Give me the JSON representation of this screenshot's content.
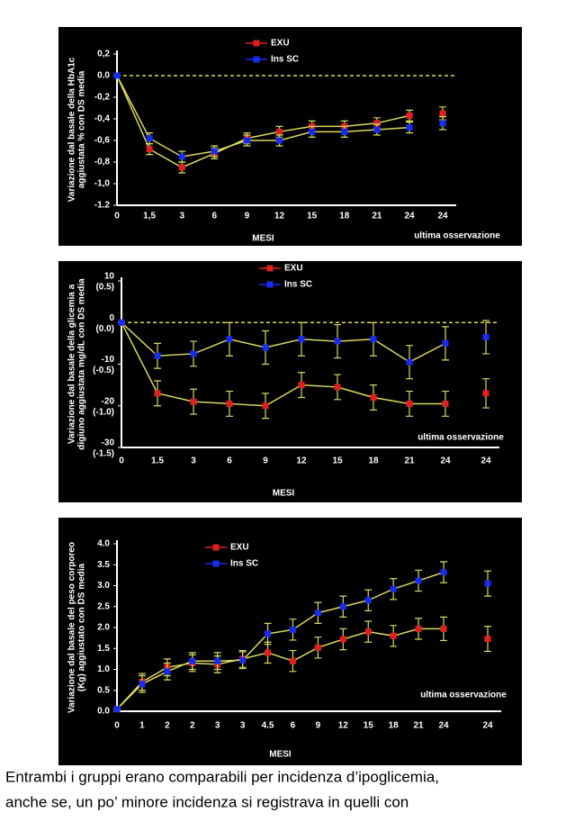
{
  "chart_data": [
    {
      "type": "line",
      "ylabel": [
        "Variazione dal basale della HbA1c",
        "aggiustata % con DS media"
      ],
      "xlabel": "MESI",
      "last_label": "ultima osservazione",
      "categories": [
        "0",
        "1,5",
        "3",
        "6",
        "9",
        "12",
        "15",
        "18",
        "21",
        "24"
      ],
      "last_category": "24",
      "ylim": [
        -1.2,
        0.2
      ],
      "yticks": [
        {
          "value": 0.2,
          "label": "0,2"
        },
        {
          "value": 0,
          "label": "0.0"
        },
        {
          "value": -0.2,
          "label": "-0,2"
        },
        {
          "value": -0.4,
          "label": "-0,4"
        },
        {
          "value": -0.6,
          "label": "-0,6"
        },
        {
          "value": -0.8,
          "label": "-0,8"
        },
        {
          "value": -1,
          "label": "-1,0"
        },
        {
          "value": -1.2,
          "label": "-1.2"
        }
      ],
      "zero_line": true,
      "line_color": "#d8d860",
      "series": [
        {
          "name": "EXU",
          "color": "#e02020",
          "values": [
            0,
            -0.68,
            -0.85,
            -0.72,
            -0.58,
            -0.52,
            -0.47,
            -0.47,
            -0.44,
            -0.37
          ],
          "errors": [
            0,
            0.05,
            0.05,
            0.05,
            0.05,
            0.05,
            0.05,
            0.05,
            0.05,
            0.05
          ],
          "last_value": -0.35,
          "last_error": 0.06
        },
        {
          "name": "Ins SC",
          "color": "#1a2bf0",
          "values": [
            0,
            -0.58,
            -0.75,
            -0.7,
            -0.6,
            -0.6,
            -0.52,
            -0.52,
            -0.5,
            -0.48
          ],
          "errors": [
            0,
            0.05,
            0.05,
            0.05,
            0.05,
            0.05,
            0.05,
            0.05,
            0.05,
            0.05
          ],
          "last_value": -0.44,
          "last_error": 0.06
        }
      ]
    },
    {
      "type": "line",
      "ylabel": [
        "Variazione dal basale della glicemia a",
        "digiuno aggiustata mg/dL con DS media"
      ],
      "xlabel": "MESI",
      "last_label": "ultima osservazione",
      "categories": [
        "0",
        "1.5",
        "3",
        "6",
        "9",
        "12",
        "15",
        "18",
        "21",
        "24"
      ],
      "last_category": "24",
      "ylim": [
        -30,
        10
      ],
      "yticks": [
        10,
        0,
        -10,
        -20,
        -30
      ],
      "y2lim": [
        -1.5,
        0.5
      ],
      "y2ticks": [
        {
          "value": 0.5,
          "label": "(0.5)"
        },
        {
          "value": 0,
          "label": "(0.0)"
        },
        {
          "value": -0.5,
          "label": "(-0.5)"
        },
        {
          "value": -1,
          "label": "(-1.0)"
        },
        {
          "value": -1.5,
          "label": "(-1.5)"
        }
      ],
      "zero_line": true,
      "line_color": "#d8d860",
      "series": [
        {
          "name": "EXU",
          "color": "#e02020",
          "values": [
            0,
            -17,
            -19,
            -19.5,
            -20,
            -15,
            -15.5,
            -18,
            -19.5,
            -19.5
          ],
          "errors": [
            0,
            3,
            3,
            3,
            3,
            3,
            3,
            3,
            3,
            3
          ],
          "last_value": -17,
          "last_error": 3.5
        },
        {
          "name": "Ins SC",
          "color": "#1a2bf0",
          "values": [
            0,
            -8,
            -7.5,
            -4,
            -6,
            -4,
            -4.5,
            -4,
            -9.5,
            -5
          ],
          "errors": [
            0,
            3,
            3,
            4,
            4,
            4,
            4,
            4,
            4,
            4
          ],
          "last_value": -3.5,
          "last_error": 4
        }
      ]
    },
    {
      "type": "line",
      "ylabel": [
        "Variazione dal basale del peso corporeo",
        "(Kg) aggiustato con DS media"
      ],
      "xlabel": "MESI",
      "last_label": "ultima osservazione",
      "categories": [
        "0",
        "1",
        "2",
        "2",
        "3",
        "3",
        "4.5",
        "6",
        "9",
        "12",
        "15",
        "18",
        "21",
        "24"
      ],
      "last_category": "24",
      "ylim": [
        0,
        4
      ],
      "yticks": [
        {
          "value": 0,
          "label": "0.0"
        },
        0.5,
        {
          "value": 1,
          "label": "1.0"
        },
        1.5,
        {
          "value": 2,
          "label": "2.0"
        },
        2.5,
        {
          "value": 3,
          "label": "3.0"
        },
        3.5,
        {
          "value": 4,
          "label": "4.0"
        }
      ],
      "zero_line": false,
      "line_color": "#d8d860",
      "series": [
        {
          "name": "EXU",
          "color": "#e02020",
          "values": [
            0.05,
            0.7,
            1.05,
            1.15,
            1.12,
            1.25,
            1.4,
            1.2,
            1.52,
            1.72,
            1.9,
            1.8,
            1.97,
            1.97
          ],
          "errors": [
            0,
            0.2,
            0.2,
            0.2,
            0.2,
            0.2,
            0.25,
            0.25,
            0.25,
            0.25,
            0.25,
            0.25,
            0.25,
            0.28
          ],
          "last_value": 1.73,
          "last_error": 0.3
        },
        {
          "name": "Ins SC",
          "color": "#1a2bf0",
          "values": [
            0.05,
            0.65,
            0.95,
            1.2,
            1.2,
            1.22,
            1.85,
            1.95,
            2.35,
            2.5,
            2.65,
            2.92,
            3.12,
            3.32
          ],
          "errors": [
            0,
            0.2,
            0.2,
            0.2,
            0.2,
            0.2,
            0.25,
            0.25,
            0.25,
            0.25,
            0.25,
            0.25,
            0.25,
            0.25
          ],
          "last_value": 3.05,
          "last_error": 0.3
        }
      ]
    }
  ],
  "footer": [
    "Entrambi i gruppi erano comparabili per incidenza d’ipoglicemia,",
    "anche se, un po’ minore incidenza si registrava in quelli con"
  ]
}
